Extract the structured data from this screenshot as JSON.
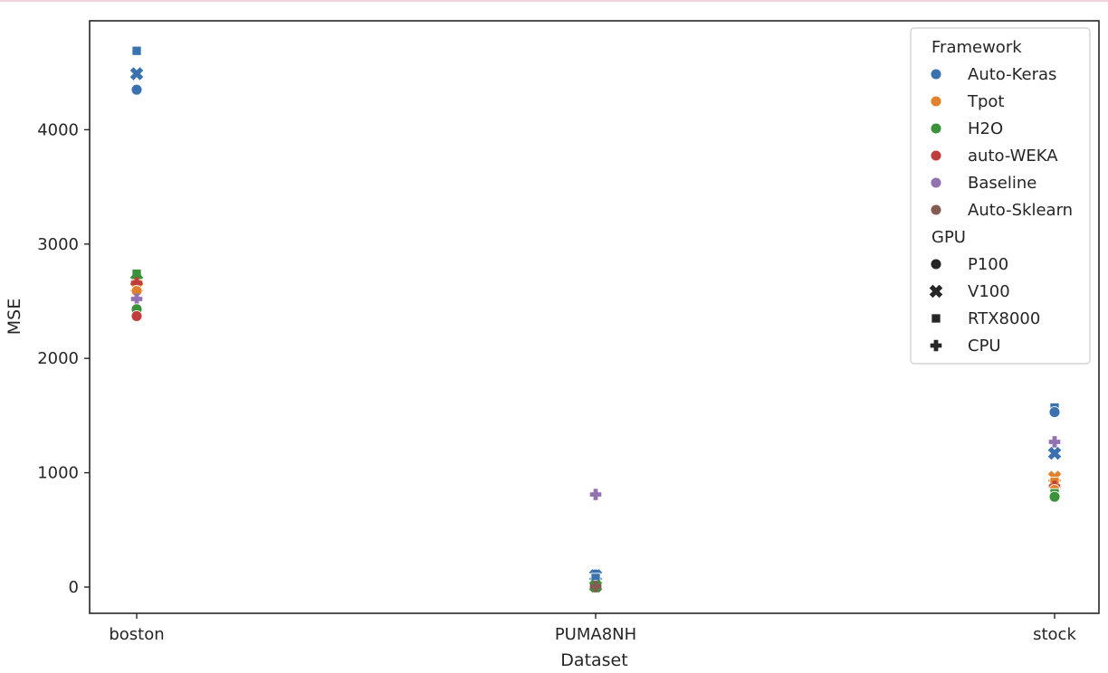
{
  "chart_data": {
    "type": "scatter",
    "title": "",
    "xlabel": "Dataset",
    "ylabel": "MSE",
    "categories": [
      "boston",
      "PUMA8NH",
      "stock"
    ],
    "ylim": [
      -230,
      4920
    ],
    "yticks": [
      0,
      1000,
      2000,
      3000,
      4000
    ],
    "grid": false,
    "legend_position": "top-right",
    "legend": {
      "hue_title": "Framework",
      "hue_entries": [
        {
          "label": "Auto-Keras",
          "color": "#3a72b0"
        },
        {
          "label": "Tpot",
          "color": "#e1812c"
        },
        {
          "label": "H2O",
          "color": "#3a923a"
        },
        {
          "label": "auto-WEKA",
          "color": "#c03d3e"
        },
        {
          "label": "Baseline",
          "color": "#9372b2"
        },
        {
          "label": "Auto-Sklearn",
          "color": "#845b53"
        }
      ],
      "style_title": "GPU",
      "style_entries": [
        {
          "label": "P100",
          "marker": "circle"
        },
        {
          "label": "V100",
          "marker": "x"
        },
        {
          "label": "RTX8000",
          "marker": "square"
        },
        {
          "label": "CPU",
          "marker": "plus"
        }
      ]
    },
    "points": [
      {
        "dataset": "boston",
        "framework": "Auto-Keras",
        "gpu": "RTX8000",
        "mse": 4690
      },
      {
        "dataset": "boston",
        "framework": "Auto-Keras",
        "gpu": "V100",
        "mse": 4490
      },
      {
        "dataset": "boston",
        "framework": "Auto-Keras",
        "gpu": "P100",
        "mse": 4350
      },
      {
        "dataset": "boston",
        "framework": "H2O",
        "gpu": "RTX8000",
        "mse": 2740
      },
      {
        "dataset": "boston",
        "framework": "H2O",
        "gpu": "V100",
        "mse": 2680
      },
      {
        "dataset": "boston",
        "framework": "Tpot",
        "gpu": "RTX8000",
        "mse": 2650
      },
      {
        "dataset": "boston",
        "framework": "Tpot",
        "gpu": "V100",
        "mse": 2620
      },
      {
        "dataset": "boston",
        "framework": "auto-WEKA",
        "gpu": "CPU",
        "mse": 2660
      },
      {
        "dataset": "boston",
        "framework": "Tpot",
        "gpu": "P100",
        "mse": 2590
      },
      {
        "dataset": "boston",
        "framework": "Baseline",
        "gpu": "CPU",
        "mse": 2520
      },
      {
        "dataset": "boston",
        "framework": "H2O",
        "gpu": "P100",
        "mse": 2430
      },
      {
        "dataset": "boston",
        "framework": "auto-WEKA",
        "gpu": "P100",
        "mse": 2370
      },
      {
        "dataset": "PUMA8NH",
        "framework": "Baseline",
        "gpu": "CPU",
        "mse": 810
      },
      {
        "dataset": "PUMA8NH",
        "framework": "Auto-Keras",
        "gpu": "P100",
        "mse": 110
      },
      {
        "dataset": "PUMA8NH",
        "framework": "Auto-Keras",
        "gpu": "V100",
        "mse": 100
      },
      {
        "dataset": "PUMA8NH",
        "framework": "Auto-Keras",
        "gpu": "RTX8000",
        "mse": 80
      },
      {
        "dataset": "PUMA8NH",
        "framework": "Tpot",
        "gpu": "P100",
        "mse": 10
      },
      {
        "dataset": "PUMA8NH",
        "framework": "H2O",
        "gpu": "V100",
        "mse": 8
      },
      {
        "dataset": "PUMA8NH",
        "framework": "auto-WEKA",
        "gpu": "CPU",
        "mse": 5
      },
      {
        "dataset": "PUMA8NH",
        "framework": "Auto-Sklearn",
        "gpu": "CPU",
        "mse": 3
      },
      {
        "dataset": "stock",
        "framework": "Auto-Keras",
        "gpu": "RTX8000",
        "mse": 1570
      },
      {
        "dataset": "stock",
        "framework": "Auto-Keras",
        "gpu": "P100",
        "mse": 1530
      },
      {
        "dataset": "stock",
        "framework": "Baseline",
        "gpu": "CPU",
        "mse": 1270
      },
      {
        "dataset": "stock",
        "framework": "Auto-Keras",
        "gpu": "V100",
        "mse": 1170
      },
      {
        "dataset": "stock",
        "framework": "Tpot",
        "gpu": "V100",
        "mse": 960
      },
      {
        "dataset": "stock",
        "framework": "Tpot",
        "gpu": "RTX8000",
        "mse": 920
      },
      {
        "dataset": "stock",
        "framework": "auto-WEKA",
        "gpu": "CPU",
        "mse": 880
      },
      {
        "dataset": "stock",
        "framework": "Tpot",
        "gpu": "P100",
        "mse": 850
      },
      {
        "dataset": "stock",
        "framework": "H2O",
        "gpu": "RTX8000",
        "mse": 820
      },
      {
        "dataset": "stock",
        "framework": "H2O",
        "gpu": "P100",
        "mse": 790
      }
    ]
  }
}
